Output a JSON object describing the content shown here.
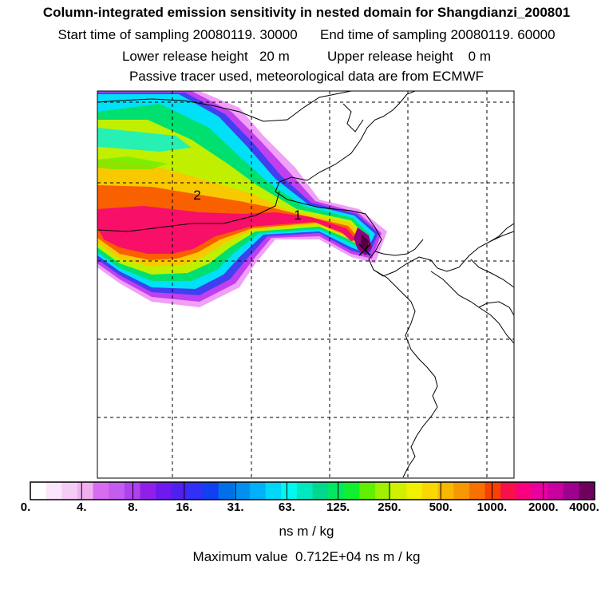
{
  "header": {
    "title": "Column-integrated emission sensitivity in nested domain for Shangdianzi_200801",
    "sampling_line": "Start time of sampling 20080119. 30000      End time of sampling 20080119. 60000",
    "height_line": "Lower release height   20 m          Upper release height    0 m",
    "tracer_line": "Passive tracer used, meteorological data are from ECMWF"
  },
  "map": {
    "labels": [
      {
        "id": "source-1",
        "text": "1"
      },
      {
        "id": "source-2",
        "text": "2"
      }
    ]
  },
  "colorbar": {
    "colors": [
      "#ffffff",
      "#fbe6fb",
      "#f5ccf5",
      "#efb0ef",
      "#d86cf0",
      "#c45cf0",
      "#b040f0",
      "#9020e8",
      "#7018f0",
      "#5020f0",
      "#3030f8",
      "#1040f0",
      "#0070e8",
      "#0090f0",
      "#00b0f8",
      "#00d8f8",
      "#00f8f0",
      "#00e8c0",
      "#00d890",
      "#00e860",
      "#10f030",
      "#60f000",
      "#a0f000",
      "#d0f000",
      "#f0f000",
      "#f8d800",
      "#f8b800",
      "#f89800",
      "#f87000",
      "#f84000",
      "#f81048",
      "#f80080",
      "#e800a0",
      "#c800a0",
      "#a00090",
      "#700060"
    ],
    "tick_labels": [
      "0.",
      "4.",
      "8.",
      "16.",
      "31.",
      "63.",
      "125.",
      "250.",
      "500.",
      "1000.",
      "2000.",
      "4000."
    ],
    "units": "ns m / kg"
  },
  "footer": {
    "max_value": "Maximum value  0.712E+04 ns m / kg"
  }
}
